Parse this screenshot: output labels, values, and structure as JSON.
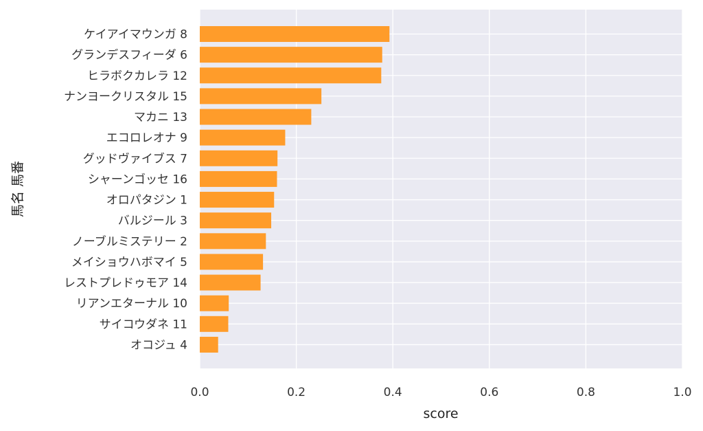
{
  "chart_data": {
    "type": "bar",
    "orientation": "horizontal",
    "xlabel": "score",
    "ylabel": "馬名 馬番",
    "xlim": [
      0.0,
      1.0
    ],
    "xticks": [
      "0.0",
      "0.2",
      "0.4",
      "0.6",
      "0.8",
      "1.0"
    ],
    "grid": true,
    "bar_color": "#FF9C2A",
    "plot_bg": "#EAEAF2",
    "categories": [
      "ケイアイマウンガ 8",
      "グランデスフィーダ 6",
      "ヒラボクカレラ 12",
      "ナンヨークリスタル 15",
      "マカニ 13",
      "エコロレオナ 9",
      "グッドヴァイブス 7",
      "シャーンゴッセ 16",
      "オロパタジン 1",
      "バルジール 3",
      "ノーブルミステリー 2",
      "メイショウハボマイ 5",
      "レストプレドゥモア 14",
      "リアンエターナル 10",
      "サイコウダネ 11",
      "オコジュ 4"
    ],
    "values": [
      0.393,
      0.378,
      0.376,
      0.252,
      0.231,
      0.177,
      0.161,
      0.16,
      0.154,
      0.148,
      0.137,
      0.131,
      0.126,
      0.06,
      0.059,
      0.038
    ]
  }
}
